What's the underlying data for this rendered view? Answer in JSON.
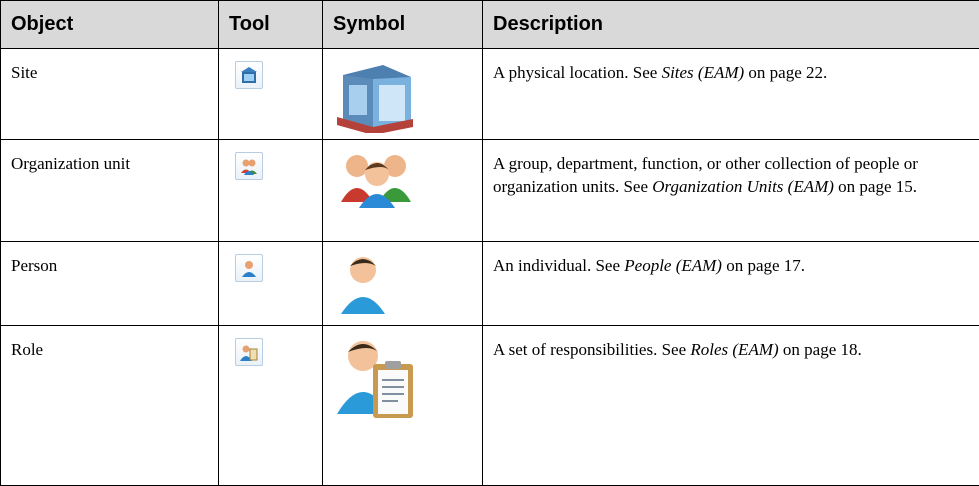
{
  "table": {
    "headers": [
      "Object",
      "Tool",
      "Symbol",
      "Description"
    ],
    "rows": [
      {
        "object": "Site",
        "description": {
          "before": "A physical location. See ",
          "link": "Sites (EAM)",
          "after": " on page 22."
        }
      },
      {
        "object": "Organization unit",
        "description": {
          "before": "A group, department, function, or other collection of people or organization units. See ",
          "link": "Organization Units (EAM)",
          "after": " on page 15."
        }
      },
      {
        "object": "Person",
        "description": {
          "before": "An individual. See ",
          "link": "People (EAM)",
          "after": " on page 17."
        }
      },
      {
        "object": "Role",
        "description": {
          "before": "A set of responsibilities. See ",
          "link": "Roles (EAM)",
          "after": " on page 18."
        }
      }
    ]
  }
}
